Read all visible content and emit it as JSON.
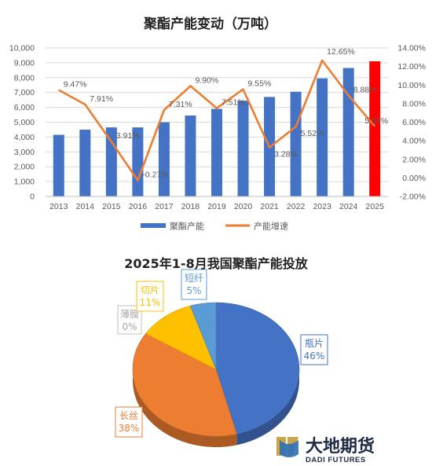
{
  "chart_data": [
    {
      "type": "bar+line",
      "title": "聚酯产能变动（万吨）",
      "categories": [
        "2013",
        "2014",
        "2015",
        "2016",
        "2017",
        "2018",
        "2019",
        "2020",
        "2021",
        "2022",
        "2023",
        "2024",
        "2025"
      ],
      "series": [
        {
          "name": "聚酯产能",
          "type": "bar",
          "axis": "left",
          "color": "#4472C4",
          "highlight_color": "#FF0000",
          "highlight_index": 12,
          "values": [
            4150,
            4500,
            4650,
            4650,
            5000,
            5450,
            5900,
            6450,
            6700,
            7050,
            7950,
            8650,
            9100
          ]
        },
        {
          "name": "产能增速",
          "type": "line",
          "axis": "right",
          "color": "#ED7D31",
          "values": [
            9.47,
            7.91,
            3.91,
            -0.27,
            7.31,
            9.9,
            7.51,
            9.55,
            3.28,
            5.52,
            12.65,
            8.88,
            5.55
          ],
          "labels": [
            "9.47%",
            "7.91%",
            "3.91%",
            "-0.27%",
            "7.31%",
            "9.90%",
            "7.51%",
            "9.55%",
            "3.28%",
            "5.52%",
            "12.65%",
            "8.88%",
            "5.55%"
          ]
        }
      ],
      "y_left": {
        "min": 0,
        "max": 10000,
        "step": 1000,
        "tick_labels": [
          "0",
          "1,000",
          "2,000",
          "3,000",
          "4,000",
          "5,000",
          "6,000",
          "7,000",
          "8,000",
          "9,000",
          "10,000"
        ]
      },
      "y_right": {
        "min": -2,
        "max": 14,
        "step": 2,
        "tick_labels": [
          "-2.00%",
          "0.00%",
          "2.00%",
          "4.00%",
          "6.00%",
          "8.00%",
          "10.00%",
          "12.00%",
          "14.00%"
        ]
      },
      "grid": true,
      "legend": "bottom"
    },
    {
      "type": "pie",
      "title": "2025年1-8月我国聚酯产能投放",
      "slices": [
        {
          "name": "瓶片",
          "value": 46,
          "label": "46%",
          "color": "#4472C4"
        },
        {
          "name": "长丝",
          "value": 38,
          "label": "38%",
          "color": "#ED7D31"
        },
        {
          "name": "薄膜",
          "value": 0,
          "label": "0%",
          "color": "#A5A5A5"
        },
        {
          "name": "切片",
          "value": 11,
          "label": "11%",
          "color": "#FFC000"
        },
        {
          "name": "短纤",
          "value": 5,
          "label": "5%",
          "color": "#5B9BD5"
        }
      ],
      "style": "3d"
    }
  ],
  "logo": {
    "name_cn": "大地期货",
    "name_en": "DADI FUTURES"
  }
}
